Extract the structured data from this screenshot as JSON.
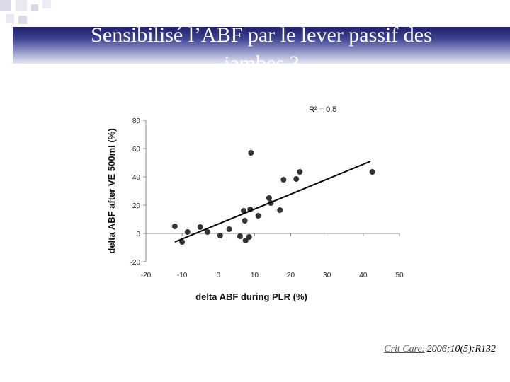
{
  "slide": {
    "title_line1": "Sensibilisé l’ABF par le lever passif des",
    "title_line2": "jambes ?",
    "citation_journal": "Crit Care.",
    "citation_rest": " 2006;10(5):R132",
    "title_band_color": "#2a2f80"
  },
  "chart_data": {
    "type": "scatter",
    "title": "",
    "xlabel": "delta ABF during PLR (%)",
    "ylabel": "delta ABF after VE 500ml (%)",
    "annotation": "R² = 0,5",
    "xlim": [
      -20,
      50
    ],
    "ylim": [
      -20,
      80
    ],
    "x_ticks": [
      -20,
      -10,
      0,
      10,
      20,
      30,
      40,
      50
    ],
    "y_ticks": [
      -20,
      0,
      20,
      40,
      60,
      80
    ],
    "grid": false,
    "points": [
      {
        "x": -12,
        "y": 5
      },
      {
        "x": -10,
        "y": -6
      },
      {
        "x": -8.5,
        "y": 1
      },
      {
        "x": -5,
        "y": 4.5
      },
      {
        "x": -3,
        "y": 1
      },
      {
        "x": 0.5,
        "y": -1.5
      },
      {
        "x": 3,
        "y": 3
      },
      {
        "x": 6,
        "y": -2
      },
      {
        "x": 7,
        "y": 16
      },
      {
        "x": 7.3,
        "y": 9
      },
      {
        "x": 7.5,
        "y": -5
      },
      {
        "x": 8.5,
        "y": -2.5
      },
      {
        "x": 8.8,
        "y": 17
      },
      {
        "x": 9,
        "y": 57
      },
      {
        "x": 11,
        "y": 12.5
      },
      {
        "x": 14,
        "y": 25
      },
      {
        "x": 14.5,
        "y": 21.5
      },
      {
        "x": 17,
        "y": 16.5
      },
      {
        "x": 18,
        "y": 38
      },
      {
        "x": 21.5,
        "y": 38.5
      },
      {
        "x": 22.5,
        "y": 43.5
      },
      {
        "x": 42.5,
        "y": 43.5
      }
    ],
    "trendline": {
      "x": [
        -12,
        42
      ],
      "y": [
        -6,
        51
      ]
    },
    "marker_color": "#333333"
  }
}
